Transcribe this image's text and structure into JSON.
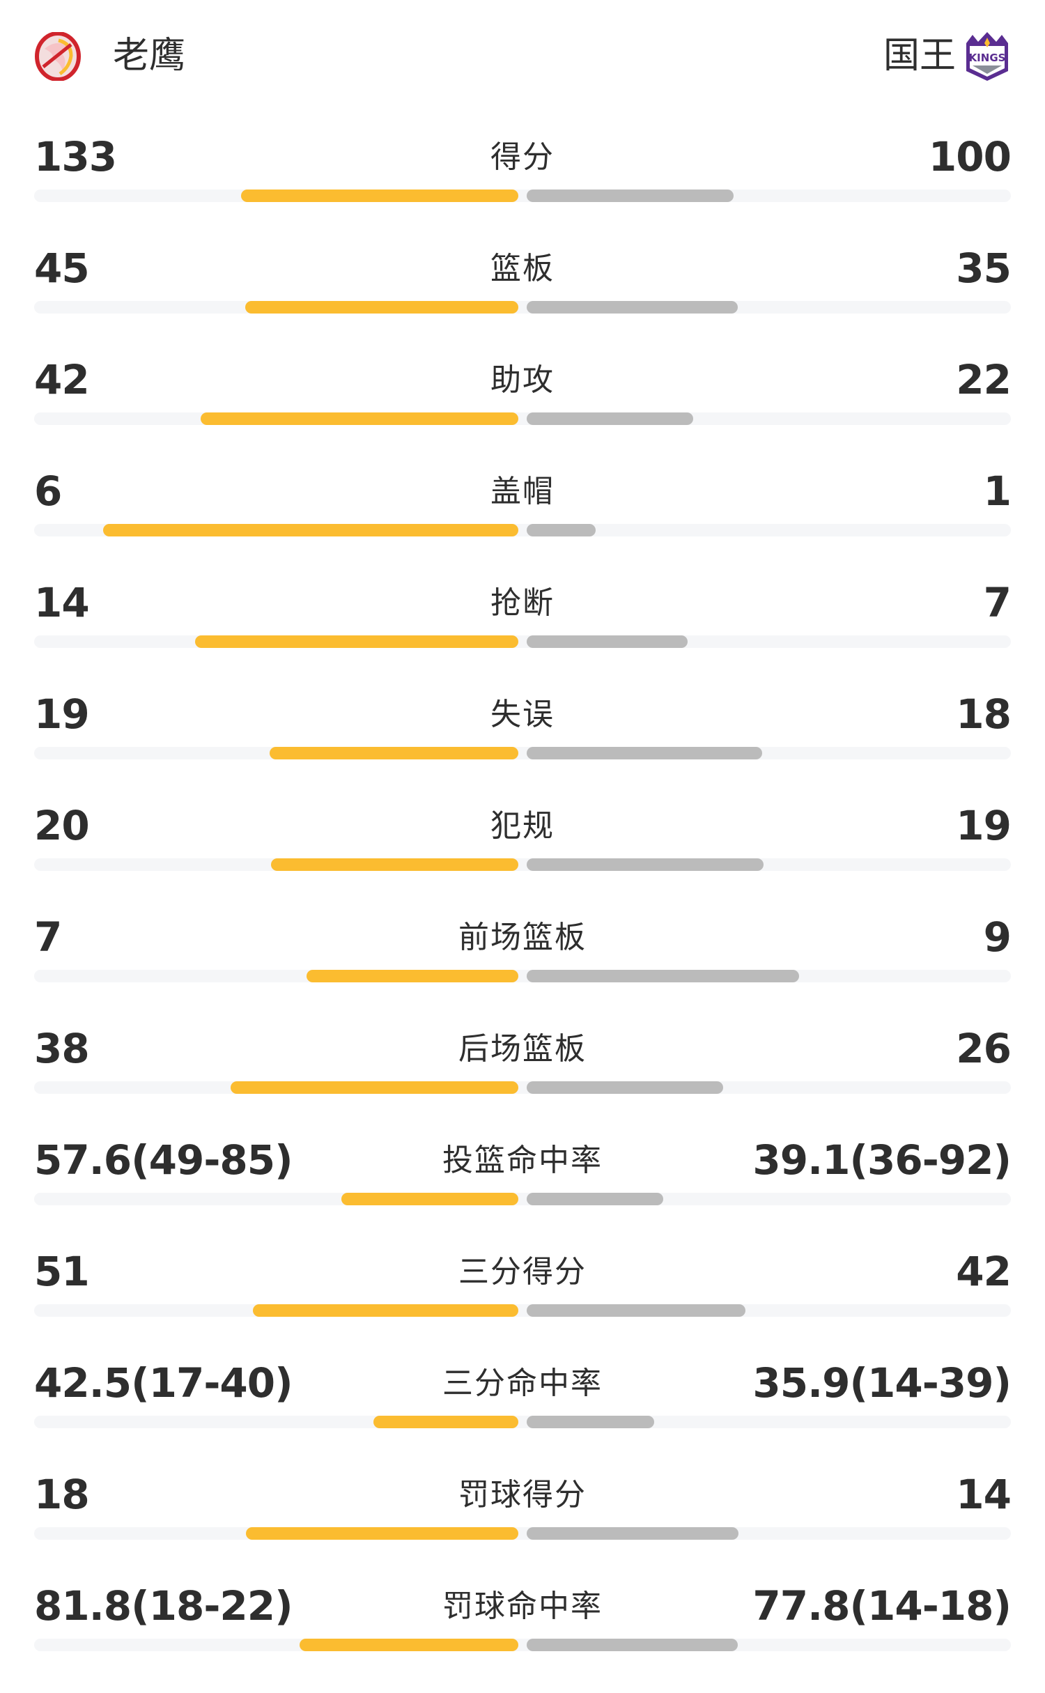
{
  "header": {
    "home": {
      "name": "老鹰",
      "logo": "hawks-logo"
    },
    "away": {
      "name": "国王",
      "logo": "kings-logo",
      "logo_text": "KINGS"
    }
  },
  "colors": {
    "home_bar": "#fbbc30",
    "away_bar": "#bbbbbb",
    "track": "#f5f6f8"
  },
  "stats": [
    {
      "label": "得分",
      "home": "133",
      "away": "100",
      "home_fill": 0.573,
      "away_fill": 0.427
    },
    {
      "label": "篮板",
      "home": "45",
      "away": "35",
      "home_fill": 0.564,
      "away_fill": 0.436
    },
    {
      "label": "助攻",
      "home": "42",
      "away": "22",
      "home_fill": 0.656,
      "away_fill": 0.344
    },
    {
      "label": "盖帽",
      "home": "6",
      "away": "1",
      "home_fill": 0.857,
      "away_fill": 0.143
    },
    {
      "label": "抢断",
      "home": "14",
      "away": "7",
      "home_fill": 0.667,
      "away_fill": 0.333
    },
    {
      "label": "失误",
      "home": "19",
      "away": "18",
      "home_fill": 0.514,
      "away_fill": 0.486
    },
    {
      "label": "犯规",
      "home": "20",
      "away": "19",
      "home_fill": 0.511,
      "away_fill": 0.489
    },
    {
      "label": "前场篮板",
      "home": "7",
      "away": "9",
      "home_fill": 0.438,
      "away_fill": 0.563
    },
    {
      "label": "后场篮板",
      "home": "38",
      "away": "26",
      "home_fill": 0.594,
      "away_fill": 0.406
    },
    {
      "label": "投篮命中率",
      "home": "57.6(49-85)",
      "away": "39.1(36-92)",
      "home_fill": 0.366,
      "away_fill": 0.282
    },
    {
      "label": "三分得分",
      "home": "51",
      "away": "42",
      "home_fill": 0.548,
      "away_fill": 0.452
    },
    {
      "label": "三分命中率",
      "home": "42.5(17-40)",
      "away": "35.9(14-39)",
      "home_fill": 0.3,
      "away_fill": 0.264
    },
    {
      "label": "罚球得分",
      "home": "18",
      "away": "14",
      "home_fill": 0.563,
      "away_fill": 0.438
    },
    {
      "label": "罚球命中率",
      "home": "81.8(18-22)",
      "away": "77.8(14-18)",
      "home_fill": 0.452,
      "away_fill": 0.436
    }
  ]
}
